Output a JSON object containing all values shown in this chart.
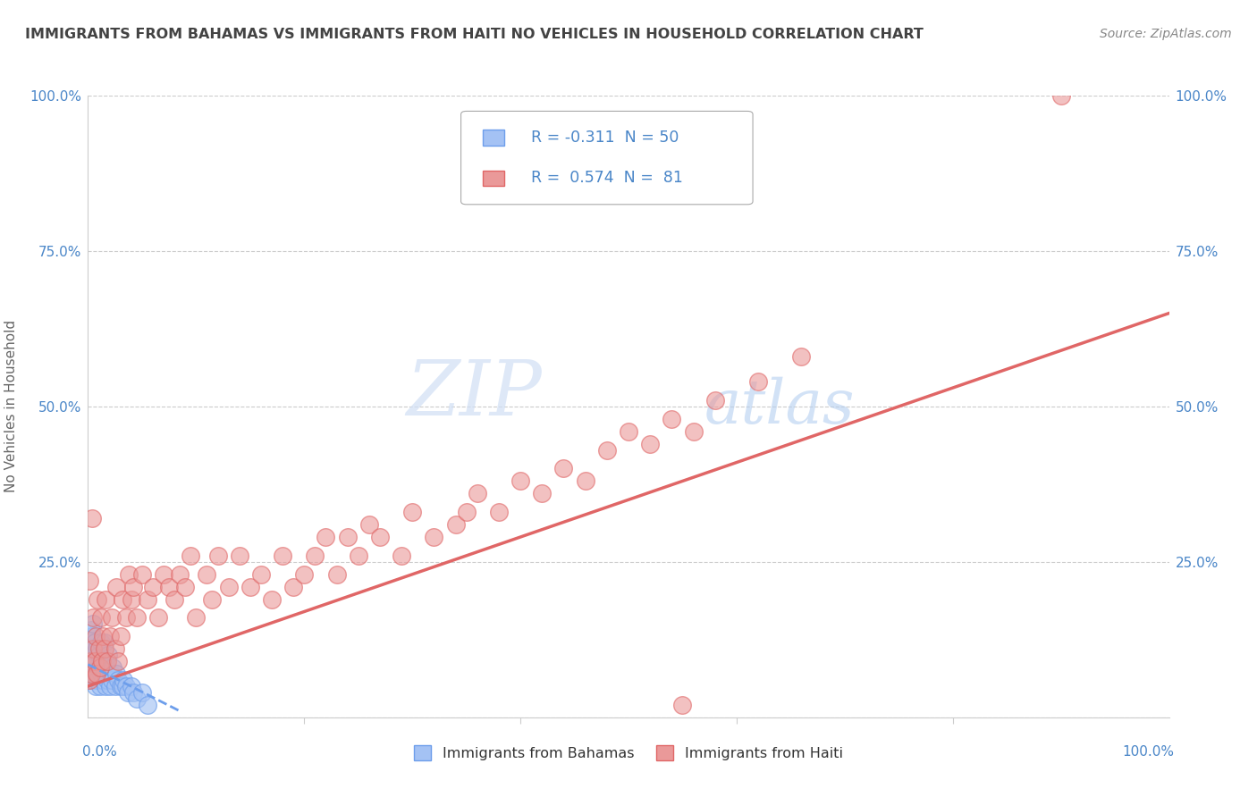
{
  "title": "IMMIGRANTS FROM BAHAMAS VS IMMIGRANTS FROM HAITI NO VEHICLES IN HOUSEHOLD CORRELATION CHART",
  "source": "Source: ZipAtlas.com",
  "ylabel": "No Vehicles in Household",
  "R_bahamas": -0.311,
  "N_bahamas": 50,
  "R_haiti": 0.574,
  "N_haiti": 81,
  "color_bahamas": "#a4c2f4",
  "color_haiti": "#ea9999",
  "color_bahamas_fill": "#a4c2f4",
  "color_haiti_fill": "#ea9999",
  "trendline_bahamas": "#6d9eeb",
  "trendline_haiti": "#e06666",
  "watermark_zip": "ZIP",
  "watermark_atlas": "atlas",
  "background_color": "#ffffff",
  "grid_color": "#cccccc",
  "title_color": "#434343",
  "axis_label_color": "#4a86c8",
  "xlim": [
    0.0,
    1.0
  ],
  "ylim": [
    0.0,
    1.0
  ],
  "ytick_values": [
    0.0,
    0.25,
    0.5,
    0.75,
    1.0
  ],
  "ytick_labels": [
    "",
    "25.0%",
    "50.0%",
    "75.0%",
    "100.0%"
  ],
  "xtick_positions": [
    0.2,
    0.4,
    0.6,
    0.8
  ],
  "bahamas_x": [
    0.001,
    0.001,
    0.001,
    0.002,
    0.002,
    0.003,
    0.003,
    0.003,
    0.004,
    0.004,
    0.005,
    0.005,
    0.005,
    0.006,
    0.006,
    0.007,
    0.007,
    0.008,
    0.008,
    0.009,
    0.01,
    0.01,
    0.011,
    0.012,
    0.012,
    0.013,
    0.014,
    0.015,
    0.015,
    0.016,
    0.017,
    0.018,
    0.019,
    0.02,
    0.021,
    0.022,
    0.023,
    0.025,
    0.026,
    0.028,
    0.03,
    0.032,
    0.033,
    0.035,
    0.037,
    0.04,
    0.042,
    0.045,
    0.05,
    0.055
  ],
  "bahamas_y": [
    0.06,
    0.09,
    0.12,
    0.07,
    0.1,
    0.08,
    0.11,
    0.14,
    0.06,
    0.13,
    0.07,
    0.1,
    0.15,
    0.06,
    0.12,
    0.05,
    0.09,
    0.07,
    0.11,
    0.06,
    0.08,
    0.1,
    0.05,
    0.07,
    0.12,
    0.09,
    0.06,
    0.07,
    0.12,
    0.05,
    0.08,
    0.06,
    0.1,
    0.05,
    0.07,
    0.06,
    0.08,
    0.05,
    0.07,
    0.06,
    0.05,
    0.05,
    0.06,
    0.05,
    0.04,
    0.05,
    0.04,
    0.03,
    0.04,
    0.02
  ],
  "haiti_x": [
    0.001,
    0.001,
    0.002,
    0.003,
    0.004,
    0.005,
    0.005,
    0.006,
    0.007,
    0.008,
    0.009,
    0.01,
    0.011,
    0.012,
    0.013,
    0.014,
    0.015,
    0.016,
    0.018,
    0.02,
    0.022,
    0.025,
    0.026,
    0.028,
    0.03,
    0.032,
    0.035,
    0.038,
    0.04,
    0.042,
    0.045,
    0.05,
    0.055,
    0.06,
    0.065,
    0.07,
    0.075,
    0.08,
    0.085,
    0.09,
    0.095,
    0.1,
    0.11,
    0.115,
    0.12,
    0.13,
    0.14,
    0.15,
    0.16,
    0.17,
    0.18,
    0.19,
    0.2,
    0.21,
    0.22,
    0.23,
    0.24,
    0.25,
    0.26,
    0.27,
    0.29,
    0.3,
    0.32,
    0.34,
    0.35,
    0.36,
    0.38,
    0.4,
    0.42,
    0.44,
    0.46,
    0.48,
    0.5,
    0.52,
    0.54,
    0.56,
    0.58,
    0.62,
    0.66,
    0.9,
    0.55
  ],
  "haiti_y": [
    0.06,
    0.22,
    0.09,
    0.07,
    0.32,
    0.11,
    0.16,
    0.09,
    0.13,
    0.07,
    0.19,
    0.11,
    0.08,
    0.16,
    0.09,
    0.13,
    0.11,
    0.19,
    0.09,
    0.13,
    0.16,
    0.11,
    0.21,
    0.09,
    0.13,
    0.19,
    0.16,
    0.23,
    0.19,
    0.21,
    0.16,
    0.23,
    0.19,
    0.21,
    0.16,
    0.23,
    0.21,
    0.19,
    0.23,
    0.21,
    0.26,
    0.16,
    0.23,
    0.19,
    0.26,
    0.21,
    0.26,
    0.21,
    0.23,
    0.19,
    0.26,
    0.21,
    0.23,
    0.26,
    0.29,
    0.23,
    0.29,
    0.26,
    0.31,
    0.29,
    0.26,
    0.33,
    0.29,
    0.31,
    0.33,
    0.36,
    0.33,
    0.38,
    0.36,
    0.4,
    0.38,
    0.43,
    0.46,
    0.44,
    0.48,
    0.46,
    0.51,
    0.54,
    0.58,
    1.0,
    0.02
  ]
}
